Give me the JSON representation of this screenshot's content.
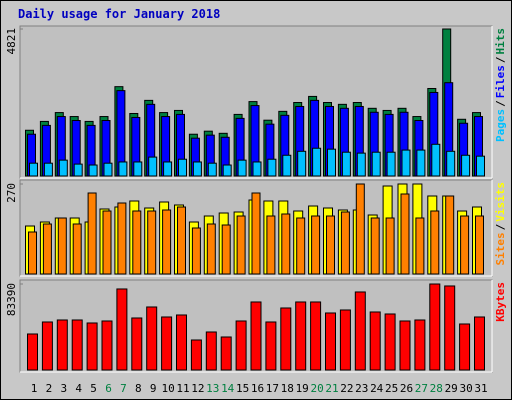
{
  "chart_data": [
    {
      "type": "bar",
      "title": "Daily usage for January 2018",
      "legend_separator": "/",
      "ylim": [
        0,
        4821
      ],
      "yticks": [
        4821
      ],
      "series": [
        {
          "name": "Hits",
          "color": "#008040",
          "values": [
            1500,
            1790,
            2080,
            1950,
            1790,
            1950,
            2930,
            2050,
            2480,
            2080,
            2150,
            1370,
            1470,
            1400,
            2020,
            2440,
            1830,
            2120,
            2410,
            2610,
            2410,
            2350,
            2410,
            2220,
            2150,
            2220,
            1950,
            2870,
            4821,
            1860,
            2080
          ]
        },
        {
          "name": "Files",
          "color": "#0000ff",
          "values": [
            1370,
            1660,
            1950,
            1820,
            1660,
            1820,
            2800,
            1920,
            2350,
            1950,
            2020,
            1240,
            1340,
            1270,
            1890,
            2310,
            1700,
            1990,
            2280,
            2480,
            2280,
            2220,
            2280,
            2090,
            2020,
            2090,
            1820,
            2740,
            3060,
            1730,
            1950
          ]
        },
        {
          "name": "Pages",
          "color": "#00c0ff",
          "values": [
            420,
            420,
            520,
            390,
            360,
            420,
            460,
            460,
            620,
            460,
            550,
            460,
            420,
            360,
            520,
            460,
            550,
            680,
            810,
            910,
            880,
            780,
            750,
            780,
            780,
            850,
            850,
            1040,
            810,
            680,
            650
          ]
        }
      ]
    },
    {
      "type": "bar",
      "legend_separator": "/",
      "ylim": [
        0,
        270
      ],
      "yticks": [
        270
      ],
      "series": [
        {
          "name": "Visits",
          "color": "#ffff00",
          "values": [
            144,
            156,
            168,
            168,
            156,
            195,
            201,
            219,
            198,
            216,
            207,
            156,
            174,
            183,
            186,
            222,
            219,
            219,
            189,
            204,
            198,
            192,
            192,
            177,
            264,
            270,
            270,
            234,
            234,
            189,
            201
          ]
        },
        {
          "name": "Sites",
          "color": "#ff8000",
          "values": [
            126,
            150,
            168,
            150,
            243,
            189,
            213,
            189,
            189,
            192,
            201,
            138,
            150,
            147,
            174,
            243,
            174,
            180,
            168,
            174,
            174,
            186,
            270,
            168,
            168,
            240,
            168,
            189,
            234,
            174,
            174
          ]
        }
      ]
    },
    {
      "type": "bar",
      "ylim": [
        0,
        83390
      ],
      "yticks": [
        83390
      ],
      "categories": [
        "1",
        "2",
        "3",
        "4",
        "5",
        "6",
        "7",
        "8",
        "9",
        "10",
        "11",
        "12",
        "13",
        "14",
        "15",
        "16",
        "17",
        "18",
        "19",
        "20",
        "21",
        "22",
        "23",
        "24",
        "25",
        "26",
        "27",
        "28",
        "29",
        "30",
        "31"
      ],
      "category_color": "#000000",
      "highlight_categories": [
        5,
        6,
        12,
        13,
        19,
        20,
        26,
        27
      ],
      "highlight_color": "#008040",
      "series": [
        {
          "name": "KBytes",
          "color": "#ff0000",
          "values": [
            34920,
            46560,
            48500,
            48500,
            45590,
            47530,
            78570,
            50440,
            61110,
            51410,
            53350,
            29100,
            36860,
            32010,
            47530,
            65960,
            46560,
            60140,
            65960,
            65960,
            55290,
            58200,
            75660,
            56260,
            54320,
            47530,
            48500,
            83390,
            81480,
            44620,
            51410
          ]
        }
      ]
    }
  ]
}
